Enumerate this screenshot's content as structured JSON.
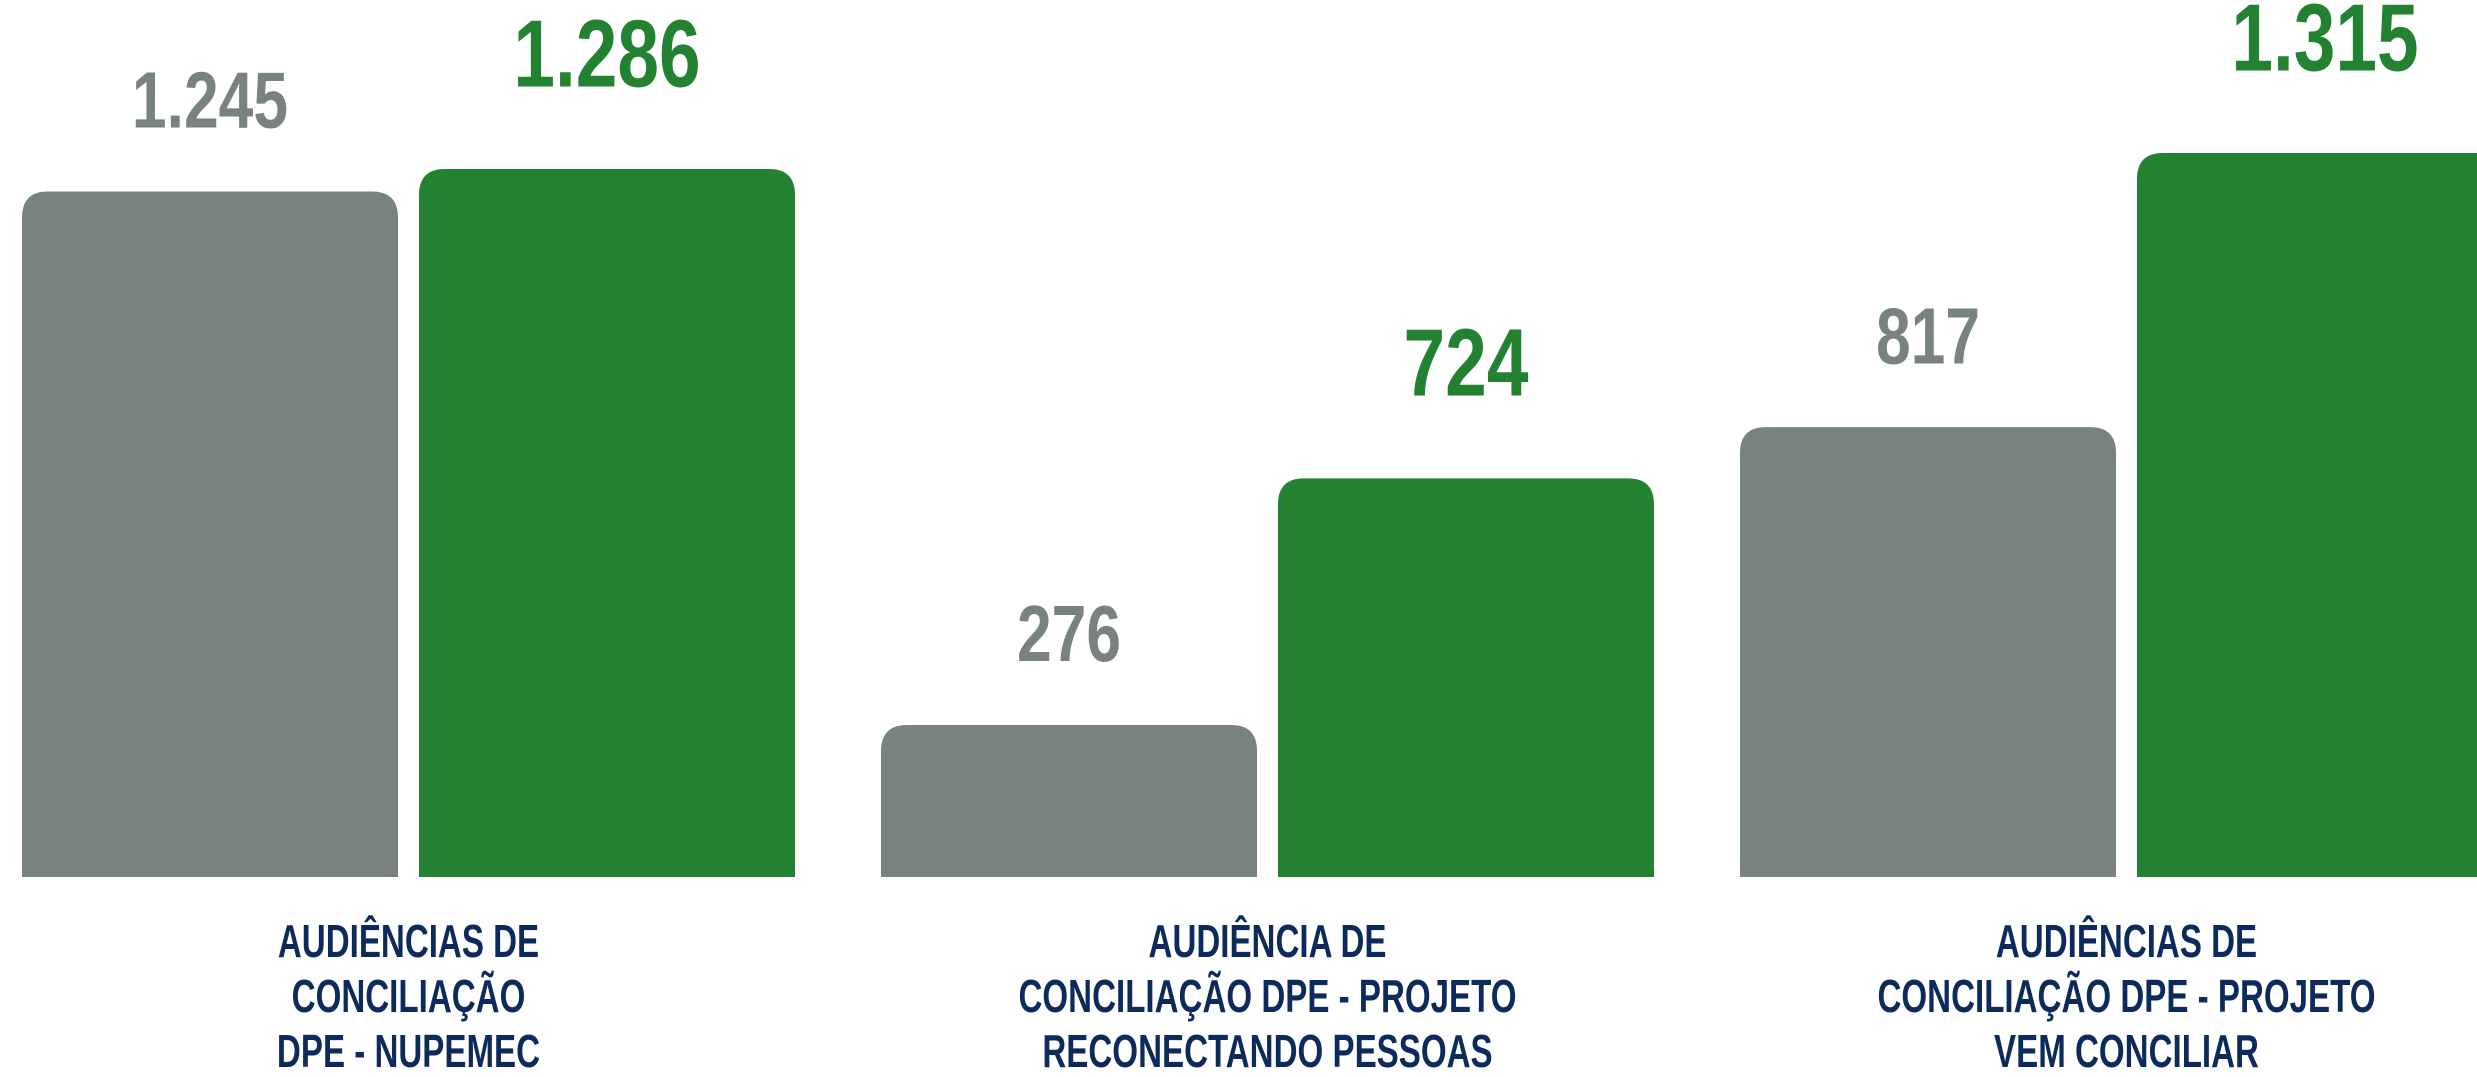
{
  "chart_data": {
    "type": "bar",
    "categories": [
      [
        "AUDIÊNCIAS DE",
        "CONCILIAÇÃO",
        "DPE - NUPEMEC"
      ],
      [
        "AUDIÊNCIA DE",
        "CONCILIAÇÃO DPE - PROJETO",
        "RECONECTANDO PESSOAS"
      ],
      [
        "AUDIÊNCIAS DE",
        "CONCILIAÇÃO DPE - PROJETO",
        "VEM CONCILIAR"
      ]
    ],
    "series": [
      {
        "color": "#78837d",
        "values": [
          1245,
          276,
          817
        ],
        "value_labels": [
          "1.245",
          "276",
          "817"
        ]
      },
      {
        "color": "#238232",
        "values": [
          1286,
          724,
          1315
        ],
        "value_labels": [
          "1.286",
          "724",
          "1.315"
        ]
      }
    ]
  }
}
